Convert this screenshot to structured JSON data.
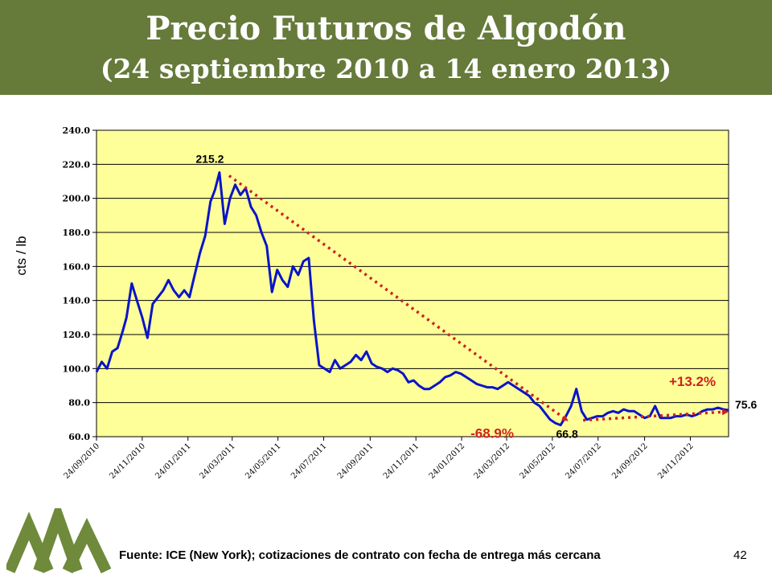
{
  "header": {
    "title": "Precio Futuros de Algodón",
    "subtitle": "(24 septiembre 2010 a 14 enero 2013)",
    "background_color": "#667a3a"
  },
  "footer": {
    "source": "Fuente: ICE (New York); cotizaciones de contrato con fecha de entrega más cercana",
    "page_number": "42"
  },
  "logo": {
    "icon": "mountain-peaks-logo-icon",
    "color": "#6e8a3a"
  },
  "chart_data": {
    "type": "line",
    "title": "",
    "xlabel": "",
    "ylabel": "cts / lb",
    "ylim": [
      60,
      240
    ],
    "yticks": [
      "60.0",
      "80.0",
      "100.0",
      "120.0",
      "140.0",
      "160.0",
      "180.0",
      "200.0",
      "220.0",
      "240.0"
    ],
    "xticks": [
      "24/09/2010",
      "24/11/2010",
      "24/01/2011",
      "24/03/2011",
      "24/05/2011",
      "24/07/2011",
      "24/09/2011",
      "24/11/2011",
      "24/01/2012",
      "24/03/2012",
      "24/05/2012",
      "24/07/2012",
      "24/09/2012",
      "24/11/2012"
    ],
    "plot_background": "#ffff99",
    "grid": "horizontal",
    "series": [
      {
        "color": "#0a14c8",
        "points": [
          [
            "2010-09-24",
            98
          ],
          [
            "2010-10-01",
            104
          ],
          [
            "2010-10-08",
            100
          ],
          [
            "2010-10-15",
            110
          ],
          [
            "2010-10-22",
            112
          ],
          [
            "2010-10-29",
            122
          ],
          [
            "2010-11-03",
            130
          ],
          [
            "2010-11-10",
            150
          ],
          [
            "2010-11-17",
            140
          ],
          [
            "2010-11-24",
            130
          ],
          [
            "2010-12-01",
            118
          ],
          [
            "2010-12-08",
            138
          ],
          [
            "2010-12-15",
            142
          ],
          [
            "2010-12-22",
            146
          ],
          [
            "2010-12-29",
            152
          ],
          [
            "2011-01-05",
            146
          ],
          [
            "2011-01-12",
            142
          ],
          [
            "2011-01-19",
            146
          ],
          [
            "2011-01-26",
            142
          ],
          [
            "2011-02-02",
            155
          ],
          [
            "2011-02-09",
            168
          ],
          [
            "2011-02-16",
            178
          ],
          [
            "2011-02-23",
            198
          ],
          [
            "2011-03-01",
            205
          ],
          [
            "2011-03-07",
            215.2
          ],
          [
            "2011-03-14",
            185
          ],
          [
            "2011-03-21",
            200
          ],
          [
            "2011-03-28",
            208
          ],
          [
            "2011-04-04",
            202
          ],
          [
            "2011-04-11",
            206
          ],
          [
            "2011-04-18",
            195
          ],
          [
            "2011-04-25",
            190
          ],
          [
            "2011-05-02",
            180
          ],
          [
            "2011-05-09",
            172
          ],
          [
            "2011-05-16",
            145
          ],
          [
            "2011-05-23",
            158
          ],
          [
            "2011-05-30",
            152
          ],
          [
            "2011-06-06",
            148
          ],
          [
            "2011-06-13",
            160
          ],
          [
            "2011-06-20",
            155
          ],
          [
            "2011-06-27",
            163
          ],
          [
            "2011-07-04",
            165
          ],
          [
            "2011-07-11",
            128
          ],
          [
            "2011-07-18",
            102
          ],
          [
            "2011-07-25",
            100
          ],
          [
            "2011-08-01",
            98
          ],
          [
            "2011-08-08",
            105
          ],
          [
            "2011-08-15",
            100
          ],
          [
            "2011-08-22",
            102
          ],
          [
            "2011-08-29",
            104
          ],
          [
            "2011-09-05",
            108
          ],
          [
            "2011-09-12",
            105
          ],
          [
            "2011-09-19",
            110
          ],
          [
            "2011-09-26",
            103
          ],
          [
            "2011-10-03",
            101
          ],
          [
            "2011-10-10",
            100
          ],
          [
            "2011-10-17",
            98
          ],
          [
            "2011-10-24",
            100
          ],
          [
            "2011-10-31",
            99
          ],
          [
            "2011-11-07",
            97
          ],
          [
            "2011-11-14",
            92
          ],
          [
            "2011-11-21",
            93
          ],
          [
            "2011-11-28",
            90
          ],
          [
            "2011-12-05",
            88
          ],
          [
            "2011-12-12",
            88
          ],
          [
            "2011-12-19",
            90
          ],
          [
            "2011-12-26",
            92
          ],
          [
            "2012-01-02",
            95
          ],
          [
            "2012-01-09",
            96
          ],
          [
            "2012-01-16",
            98
          ],
          [
            "2012-01-23",
            97
          ],
          [
            "2012-01-30",
            95
          ],
          [
            "2012-02-06",
            93
          ],
          [
            "2012-02-13",
            91
          ],
          [
            "2012-02-20",
            90
          ],
          [
            "2012-02-27",
            89
          ],
          [
            "2012-03-05",
            89
          ],
          [
            "2012-03-12",
            88
          ],
          [
            "2012-03-19",
            90
          ],
          [
            "2012-03-26",
            92
          ],
          [
            "2012-04-02",
            90
          ],
          [
            "2012-04-09",
            88
          ],
          [
            "2012-04-16",
            86
          ],
          [
            "2012-04-23",
            84
          ],
          [
            "2012-04-30",
            80
          ],
          [
            "2012-05-07",
            78
          ],
          [
            "2012-05-14",
            74
          ],
          [
            "2012-05-21",
            70
          ],
          [
            "2012-05-28",
            68
          ],
          [
            "2012-06-04",
            66.8
          ],
          [
            "2012-06-11",
            72
          ],
          [
            "2012-06-18",
            78
          ],
          [
            "2012-06-25",
            88
          ],
          [
            "2012-07-02",
            75
          ],
          [
            "2012-07-09",
            70
          ],
          [
            "2012-07-16",
            71
          ],
          [
            "2012-07-23",
            72
          ],
          [
            "2012-07-30",
            72
          ],
          [
            "2012-08-06",
            74
          ],
          [
            "2012-08-13",
            75
          ],
          [
            "2012-08-20",
            74
          ],
          [
            "2012-08-27",
            76
          ],
          [
            "2012-09-03",
            75
          ],
          [
            "2012-09-10",
            75
          ],
          [
            "2012-09-17",
            73
          ],
          [
            "2012-09-24",
            71
          ],
          [
            "2012-10-01",
            72
          ],
          [
            "2012-10-08",
            78
          ],
          [
            "2012-10-15",
            71
          ],
          [
            "2012-10-22",
            71
          ],
          [
            "2012-10-29",
            71
          ],
          [
            "2012-11-05",
            72
          ],
          [
            "2012-11-12",
            72
          ],
          [
            "2012-11-19",
            73
          ],
          [
            "2012-11-26",
            72
          ],
          [
            "2012-12-03",
            73
          ],
          [
            "2012-12-10",
            75
          ],
          [
            "2012-12-17",
            76
          ],
          [
            "2012-12-24",
            76
          ],
          [
            "2012-12-31",
            77
          ],
          [
            "2013-01-07",
            76
          ],
          [
            "2013-01-14",
            75.6
          ]
        ]
      }
    ],
    "annotations": [
      {
        "text": "215.2",
        "date": "2011-03-07",
        "value": 215.2
      },
      {
        "text": "66.8",
        "date": "2012-06-04",
        "value": 66.8
      },
      {
        "text": "75.6",
        "date": "2013-01-14",
        "value": 75.6
      },
      {
        "text": "-68.9%",
        "kind": "decline",
        "from": [
          "2011-03-07",
          215.2
        ],
        "to": [
          "2012-06-04",
          66.8
        ]
      },
      {
        "text": "+13.2%",
        "kind": "increase",
        "from": [
          "2012-06-04",
          66.8
        ],
        "to": [
          "2013-01-14",
          75.6
        ]
      }
    ],
    "annotation_color": "#cc2222"
  }
}
